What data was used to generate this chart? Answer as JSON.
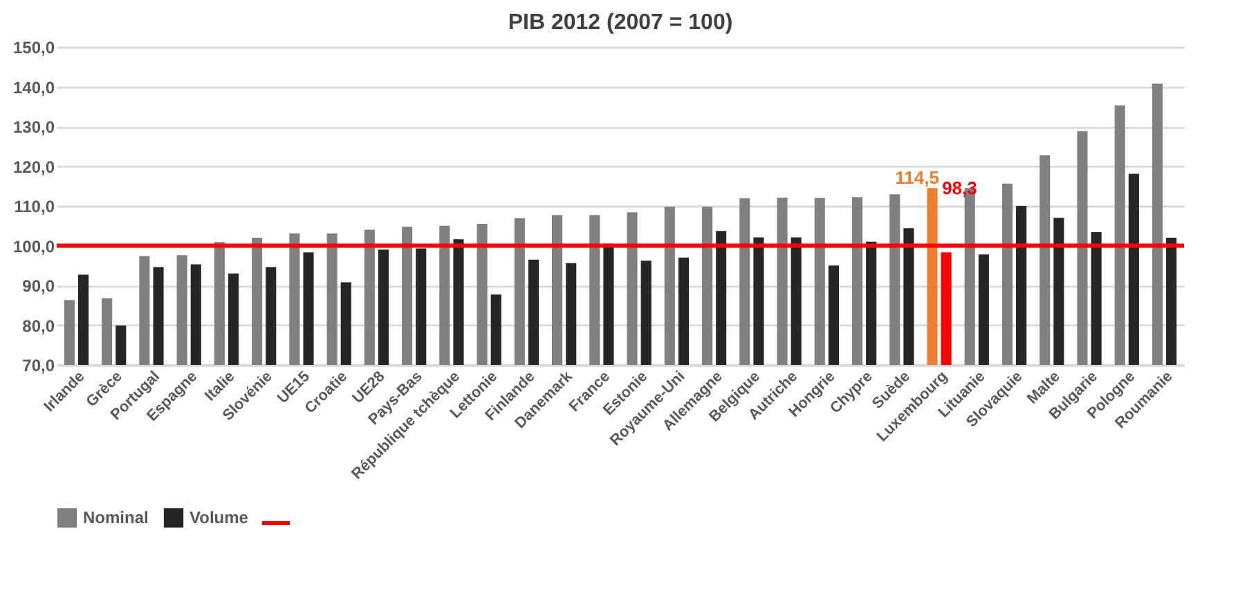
{
  "chart_data": {
    "type": "bar",
    "title": "PIB 2012 (2007 = 100)",
    "categories": [
      "Irlande",
      "Grèce",
      "Portugal",
      "Espagne",
      "Italie",
      "Slovénie",
      "UE15",
      "Croatie",
      "UE28",
      "Pays-Bas",
      "République tchèque",
      "Lettonie",
      "Finlande",
      "Danemark",
      "France",
      "Estonie",
      "Royaume-Uni",
      "Allemagne",
      "Belgique",
      "Autriche",
      "Hongrie",
      "Chypre",
      "Suède",
      "Luxembourg",
      "Lituanie",
      "Slovaquie",
      "Malte",
      "Bulgarie",
      "Pologne",
      "Roumanie"
    ],
    "series": [
      {
        "name": "Nominal",
        "color": "#808080",
        "colors": [
          "#808080",
          "#808080",
          "#808080",
          "#808080",
          "#808080",
          "#808080",
          "#808080",
          "#808080",
          "#808080",
          "#808080",
          "#808080",
          "#808080",
          "#808080",
          "#808080",
          "#808080",
          "#808080",
          "#808080",
          "#808080",
          "#808080",
          "#808080",
          "#808080",
          "#808080",
          "#808080",
          "#ed7d31",
          "#808080",
          "#808080",
          "#808080",
          "#808080",
          "#808080",
          "#808080"
        ],
        "values": [
          86.3,
          86.8,
          97.4,
          97.6,
          100.9,
          102.0,
          103.1,
          103.1,
          104.0,
          104.8,
          105.0,
          105.5,
          106.9,
          107.7,
          107.7,
          108.4,
          109.8,
          109.8,
          111.9,
          112.1,
          112.0,
          112.2,
          112.9,
          114.5,
          114.5,
          115.6,
          122.8,
          128.8,
          135.3,
          140.8
        ],
        "value_labels": [
          null,
          null,
          null,
          null,
          null,
          null,
          null,
          null,
          null,
          null,
          null,
          null,
          null,
          null,
          null,
          null,
          null,
          null,
          null,
          null,
          null,
          null,
          null,
          "114,5",
          null,
          null,
          null,
          null,
          null,
          null
        ]
      },
      {
        "name": "Volume",
        "color": "#262626",
        "colors": [
          "#262626",
          "#262626",
          "#262626",
          "#262626",
          "#262626",
          "#262626",
          "#262626",
          "#262626",
          "#262626",
          "#262626",
          "#262626",
          "#262626",
          "#262626",
          "#262626",
          "#262626",
          "#262626",
          "#262626",
          "#262626",
          "#262626",
          "#262626",
          "#262626",
          "#262626",
          "#262626",
          "#ff0000",
          "#262626",
          "#262626",
          "#262626",
          "#262626",
          "#262626",
          "#262626"
        ],
        "values": [
          92.7,
          79.9,
          94.6,
          95.3,
          93.0,
          94.6,
          98.3,
          90.8,
          99.0,
          99.3,
          101.6,
          87.7,
          96.5,
          95.6,
          100.5,
          96.2,
          97.0,
          103.7,
          102.1,
          102.1,
          95.0,
          101.0,
          104.4,
          98.3,
          97.8,
          110.0,
          107.0,
          103.4,
          118.1,
          102.0
        ],
        "value_labels": [
          null,
          null,
          null,
          null,
          null,
          null,
          null,
          null,
          null,
          null,
          null,
          null,
          null,
          null,
          null,
          null,
          null,
          null,
          null,
          null,
          null,
          null,
          null,
          "98,3",
          null,
          null,
          null,
          null,
          null,
          null
        ]
      }
    ],
    "ylim": [
      70,
      150
    ],
    "yticks": [
      {
        "value": 70,
        "label": "70,0"
      },
      {
        "value": 80,
        "label": "80,0"
      },
      {
        "value": 90,
        "label": "90,0"
      },
      {
        "value": 100,
        "label": "100,0"
      },
      {
        "value": 110,
        "label": "110,0"
      },
      {
        "value": 120,
        "label": "120,0"
      },
      {
        "value": 130,
        "label": "130,0"
      },
      {
        "value": 140,
        "label": "140,0"
      },
      {
        "value": 150,
        "label": "150,0"
      }
    ],
    "grid": "y",
    "legend": "bottom",
    "ref_lines": [
      {
        "axis": "y",
        "value": 100,
        "color": "#ff0000"
      }
    ]
  }
}
